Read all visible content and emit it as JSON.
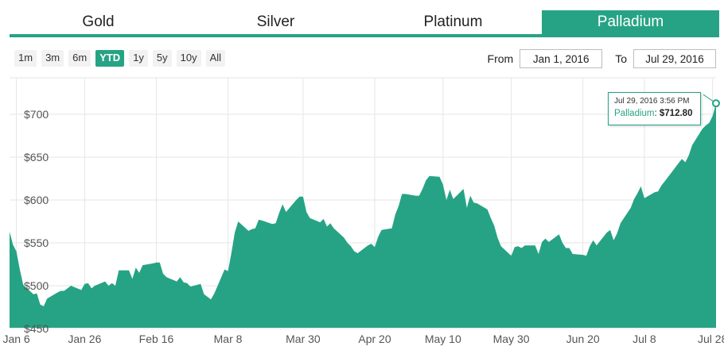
{
  "tabs": [
    {
      "label": "Gold",
      "active": false
    },
    {
      "label": "Silver",
      "active": false
    },
    {
      "label": "Platinum",
      "active": false
    },
    {
      "label": "Palladium",
      "active": true
    }
  ],
  "ranges": [
    {
      "label": "1m",
      "active": false
    },
    {
      "label": "3m",
      "active": false
    },
    {
      "label": "6m",
      "active": false
    },
    {
      "label": "YTD",
      "active": true
    },
    {
      "label": "1y",
      "active": false
    },
    {
      "label": "5y",
      "active": false
    },
    {
      "label": "10y",
      "active": false
    },
    {
      "label": "All",
      "active": false
    }
  ],
  "date_range": {
    "from_label": "From",
    "from_value": "Jan 1, 2016",
    "to_label": "To",
    "to_value": "Jul 29, 2016"
  },
  "tooltip": {
    "date": "Jul 29, 2016 3:56 PM",
    "series": "Palladium",
    "value": "$712.80"
  },
  "colors": {
    "accent": "#26a385"
  },
  "chart_data": {
    "type": "area",
    "series_name": "Palladium",
    "ylim": [
      450,
      750
    ],
    "yticks": [
      450,
      500,
      550,
      600,
      650,
      700
    ],
    "ytick_labels": [
      "$450",
      "$500",
      "$550",
      "$600",
      "$650",
      "$700"
    ],
    "xtick_labels": [
      "Jan 6",
      "Jan 26",
      "Feb 16",
      "Mar 8",
      "Mar 30",
      "Apr 20",
      "May 10",
      "May 30",
      "Jun 20",
      "Jul 8",
      "Jul 28"
    ],
    "xtick_dates": [
      "2016-01-06",
      "2016-01-26",
      "2016-02-16",
      "2016-03-08",
      "2016-03-30",
      "2016-04-20",
      "2016-05-10",
      "2016-05-30",
      "2016-06-20",
      "2016-07-08",
      "2016-07-28"
    ],
    "grid": true,
    "points": [
      [
        "2016-01-04",
        563
      ],
      [
        "2016-01-05",
        548
      ],
      [
        "2016-01-06",
        540
      ],
      [
        "2016-01-07",
        519
      ],
      [
        "2016-01-08",
        501
      ],
      [
        "2016-01-11",
        490
      ],
      [
        "2016-01-12",
        491
      ],
      [
        "2016-01-13",
        478
      ],
      [
        "2016-01-14",
        476
      ],
      [
        "2016-01-15",
        485
      ],
      [
        "2016-01-18",
        492
      ],
      [
        "2016-01-19",
        494
      ],
      [
        "2016-01-20",
        494
      ],
      [
        "2016-01-21",
        497
      ],
      [
        "2016-01-22",
        500
      ],
      [
        "2016-01-25",
        495
      ],
      [
        "2016-01-26",
        502
      ],
      [
        "2016-01-27",
        503
      ],
      [
        "2016-01-28",
        497
      ],
      [
        "2016-01-29",
        500
      ],
      [
        "2016-02-01",
        505
      ],
      [
        "2016-02-02",
        500
      ],
      [
        "2016-02-03",
        503
      ],
      [
        "2016-02-04",
        500
      ],
      [
        "2016-02-05",
        518
      ],
      [
        "2016-02-08",
        518
      ],
      [
        "2016-02-09",
        508
      ],
      [
        "2016-02-10",
        521
      ],
      [
        "2016-02-11",
        515
      ],
      [
        "2016-02-12",
        524
      ],
      [
        "2016-02-15",
        526
      ],
      [
        "2016-02-16",
        527
      ],
      [
        "2016-02-17",
        527
      ],
      [
        "2016-02-18",
        514
      ],
      [
        "2016-02-19",
        510
      ],
      [
        "2016-02-22",
        505
      ],
      [
        "2016-02-23",
        510
      ],
      [
        "2016-02-24",
        504
      ],
      [
        "2016-02-25",
        503
      ],
      [
        "2016-02-26",
        499
      ],
      [
        "2016-02-29",
        502
      ],
      [
        "2016-03-01",
        490
      ],
      [
        "2016-03-02",
        487
      ],
      [
        "2016-03-03",
        484
      ],
      [
        "2016-03-04",
        491
      ],
      [
        "2016-03-07",
        519
      ],
      [
        "2016-03-08",
        517
      ],
      [
        "2016-03-09",
        538
      ],
      [
        "2016-03-10",
        562
      ],
      [
        "2016-03-11",
        575
      ],
      [
        "2016-03-14",
        564
      ],
      [
        "2016-03-15",
        566
      ],
      [
        "2016-03-16",
        567
      ],
      [
        "2016-03-17",
        577
      ],
      [
        "2016-03-18",
        576
      ],
      [
        "2016-03-21",
        572
      ],
      [
        "2016-03-22",
        573
      ],
      [
        "2016-03-23",
        585
      ],
      [
        "2016-03-24",
        595
      ],
      [
        "2016-03-25",
        586
      ],
      [
        "2016-03-28",
        600
      ],
      [
        "2016-03-29",
        604
      ],
      [
        "2016-03-30",
        604
      ],
      [
        "2016-03-31",
        586
      ],
      [
        "2016-04-01",
        579
      ],
      [
        "2016-04-04",
        574
      ],
      [
        "2016-04-05",
        578
      ],
      [
        "2016-04-06",
        569
      ],
      [
        "2016-04-07",
        573
      ],
      [
        "2016-04-08",
        567
      ],
      [
        "2016-04-11",
        556
      ],
      [
        "2016-04-12",
        550
      ],
      [
        "2016-04-13",
        546
      ],
      [
        "2016-04-14",
        540
      ],
      [
        "2016-04-15",
        538
      ],
      [
        "2016-04-18",
        547
      ],
      [
        "2016-04-19",
        549
      ],
      [
        "2016-04-20",
        545
      ],
      [
        "2016-04-21",
        557
      ],
      [
        "2016-04-22",
        565
      ],
      [
        "2016-04-25",
        567
      ],
      [
        "2016-04-26",
        583
      ],
      [
        "2016-04-27",
        593
      ],
      [
        "2016-04-28",
        607
      ],
      [
        "2016-04-29",
        607
      ],
      [
        "2016-05-02",
        605
      ],
      [
        "2016-05-03",
        605
      ],
      [
        "2016-05-04",
        613
      ],
      [
        "2016-05-05",
        623
      ],
      [
        "2016-05-06",
        628
      ],
      [
        "2016-05-09",
        627
      ],
      [
        "2016-05-10",
        618
      ],
      [
        "2016-05-11",
        600
      ],
      [
        "2016-05-12",
        612
      ],
      [
        "2016-05-13",
        601
      ],
      [
        "2016-05-16",
        613
      ],
      [
        "2016-05-17",
        591
      ],
      [
        "2016-05-18",
        605
      ],
      [
        "2016-05-19",
        597
      ],
      [
        "2016-05-20",
        596
      ],
      [
        "2016-05-23",
        589
      ],
      [
        "2016-05-24",
        579
      ],
      [
        "2016-05-25",
        570
      ],
      [
        "2016-05-26",
        556
      ],
      [
        "2016-05-27",
        546
      ],
      [
        "2016-05-30",
        535
      ],
      [
        "2016-05-31",
        545
      ],
      [
        "2016-06-01",
        546
      ],
      [
        "2016-06-02",
        544
      ],
      [
        "2016-06-03",
        547
      ],
      [
        "2016-06-06",
        547
      ],
      [
        "2016-06-07",
        537
      ],
      [
        "2016-06-08",
        551
      ],
      [
        "2016-06-09",
        555
      ],
      [
        "2016-06-10",
        551
      ],
      [
        "2016-06-13",
        560
      ],
      [
        "2016-06-14",
        550
      ],
      [
        "2016-06-15",
        544
      ],
      [
        "2016-06-16",
        544
      ],
      [
        "2016-06-17",
        537
      ],
      [
        "2016-06-20",
        536
      ],
      [
        "2016-06-21",
        535
      ],
      [
        "2016-06-22",
        546
      ],
      [
        "2016-06-23",
        553
      ],
      [
        "2016-06-24",
        547
      ],
      [
        "2016-06-27",
        562
      ],
      [
        "2016-06-28",
        565
      ],
      [
        "2016-06-29",
        553
      ],
      [
        "2016-06-30",
        561
      ],
      [
        "2016-07-01",
        573
      ],
      [
        "2016-07-04",
        591
      ],
      [
        "2016-07-05",
        601
      ],
      [
        "2016-07-06",
        608
      ],
      [
        "2016-07-07",
        616
      ],
      [
        "2016-07-08",
        602
      ],
      [
        "2016-07-11",
        609
      ],
      [
        "2016-07-12",
        610
      ],
      [
        "2016-07-13",
        617
      ],
      [
        "2016-07-14",
        622
      ],
      [
        "2016-07-15",
        627
      ],
      [
        "2016-07-18",
        643
      ],
      [
        "2016-07-19",
        648
      ],
      [
        "2016-07-20",
        644
      ],
      [
        "2016-07-21",
        652
      ],
      [
        "2016-07-22",
        664
      ],
      [
        "2016-07-25",
        683
      ],
      [
        "2016-07-26",
        687
      ],
      [
        "2016-07-27",
        690
      ],
      [
        "2016-07-28",
        698
      ],
      [
        "2016-07-29",
        712.8
      ]
    ]
  }
}
